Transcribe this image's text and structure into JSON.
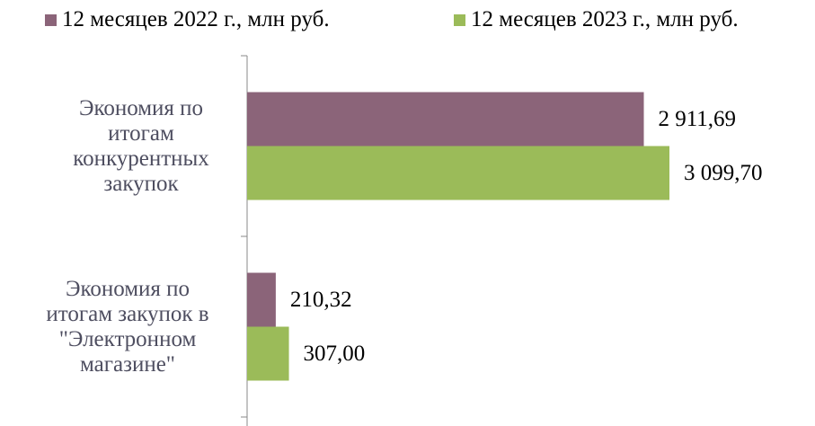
{
  "chart_data": {
    "type": "hbar",
    "categories": [
      "Экономия по итогам конкурентных закупок",
      "Экономия по итогам закупок в \"Электронном магазине\""
    ],
    "series": [
      {
        "name": "12 месяцев 2022 г., млн руб.",
        "color": "#8b6479",
        "values": [
          2911.69,
          210.32
        ],
        "value_labels": [
          "2 911,69",
          "210,32"
        ]
      },
      {
        "name": "12 месяцев 2023 г., млн руб.",
        "color": "#9bbb59",
        "values": [
          3099.7,
          307.0
        ],
        "value_labels": [
          "3 099,70",
          "307,00"
        ]
      }
    ],
    "legend": "top"
  }
}
